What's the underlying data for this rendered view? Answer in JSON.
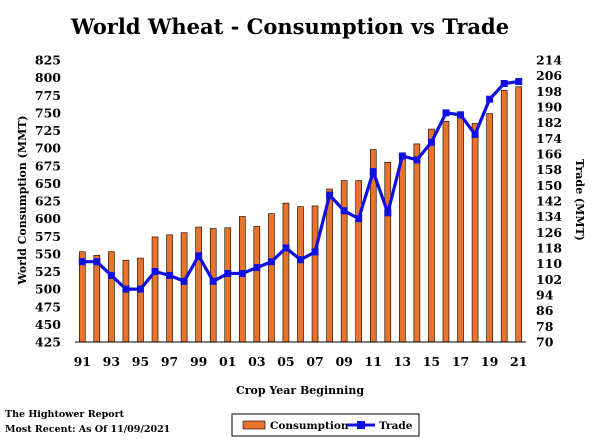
{
  "chart_data": {
    "type": "bar+line",
    "title": "World Wheat - Consumption vs Trade",
    "xlabel": "Crop Year Beginning",
    "ylabel_left": "World Consumption (MMT)",
    "ylabel_right": "Trade (MMT)",
    "x_tick_labels": [
      "91",
      "93",
      "95",
      "97",
      "99",
      "01",
      "03",
      "05",
      "07",
      "09",
      "11",
      "13",
      "15",
      "17",
      "19",
      "21"
    ],
    "categories": [
      "1991",
      "1992",
      "1993",
      "1994",
      "1995",
      "1996",
      "1997",
      "1998",
      "1999",
      "2000",
      "2001",
      "2002",
      "2003",
      "2004",
      "2005",
      "2006",
      "2007",
      "2008",
      "2009",
      "2010",
      "2011",
      "2012",
      "2013",
      "2014",
      "2015",
      "2016",
      "2017",
      "2018",
      "2019",
      "2020",
      "2021"
    ],
    "y_left": {
      "min": 425,
      "max": 825,
      "ticks": [
        425,
        450,
        475,
        500,
        525,
        550,
        575,
        600,
        625,
        650,
        675,
        700,
        725,
        750,
        775,
        800,
        825
      ]
    },
    "y_right": {
      "min": 70,
      "max": 214,
      "ticks": [
        70,
        78,
        86,
        94,
        102,
        110,
        118,
        126,
        134,
        142,
        150,
        158,
        166,
        174,
        182,
        190,
        198,
        206,
        214
      ]
    },
    "series": [
      {
        "name": "Consumption",
        "axis": "left",
        "kind": "bar",
        "color": "#E8732A",
        "values": [
          553,
          548,
          553,
          541,
          544,
          574,
          577,
          580,
          588,
          586,
          587,
          603,
          589,
          607,
          622,
          617,
          618,
          642,
          654,
          654,
          698,
          680,
          689,
          706,
          727,
          738,
          743,
          735,
          749,
          782,
          787
        ]
      },
      {
        "name": "Trade",
        "axis": "right",
        "kind": "line",
        "color": "#1010E0",
        "values": [
          111,
          111,
          104,
          97,
          97,
          106,
          104,
          101,
          114,
          101,
          105,
          105,
          108,
          111,
          118,
          112,
          116,
          145,
          137,
          133,
          157,
          136,
          165,
          163,
          172,
          187,
          186,
          176,
          194,
          202,
          203
        ]
      }
    ],
    "grid": false,
    "legend": "bottom-center"
  },
  "notes": {
    "source": "The Hightower Report",
    "date": "Most Recent: As Of 11/09/2021"
  }
}
